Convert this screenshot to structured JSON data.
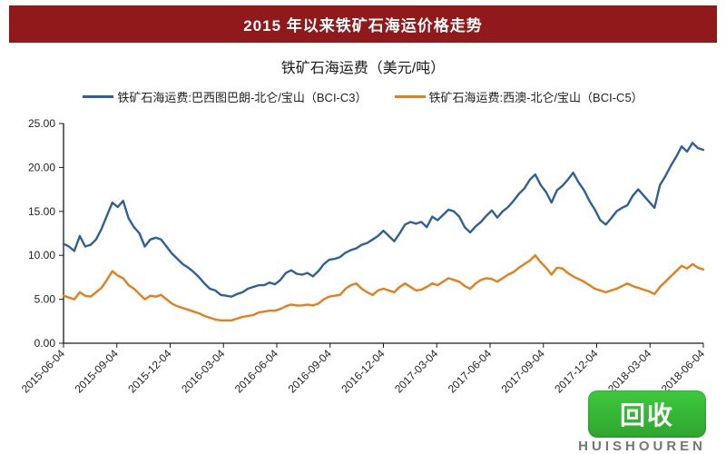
{
  "banner": {
    "title": "2015 年以来铁矿石海运价格走势"
  },
  "chart": {
    "subtitle": "铁矿石海运费（美元/吨）",
    "type": "line",
    "background_color": "#ffffff",
    "axis_color": "#1a1a1a",
    "tick_font_size": 12,
    "subtitle_font_size": 16,
    "legend_font_size": 13,
    "ylim": [
      0,
      25
    ],
    "yticks": [
      0,
      5,
      10,
      15,
      20,
      25
    ],
    "ytick_labels": [
      "0.00",
      "5.00",
      "10.00",
      "15.00",
      "20.00",
      "25.00"
    ],
    "x_labels": [
      "2015-06-04",
      "2015-09-04",
      "2015-12-04",
      "2016-03-04",
      "2016-06-04",
      "2016-09-04",
      "2016-12-04",
      "2017-03-04",
      "2017-06-04",
      "2017-09-04",
      "2017-12-04",
      "2018-03-04",
      "2018-06-04"
    ],
    "x_label_rotation": -45,
    "line_width": 2.4,
    "legend": {
      "items": [
        {
          "label": "铁矿石海运费:巴西图巴朗-北仑/宝山（BCI-C3）",
          "color": "#305f9e"
        },
        {
          "label": "铁矿石海运费:西澳-北仑/宝山（BCI-C5）",
          "color": "#e87d1a"
        }
      ]
    },
    "series": [
      {
        "name": "BCI-C3",
        "color": "#305f9e",
        "data": [
          11.3,
          11.0,
          10.5,
          12.2,
          11.0,
          11.2,
          11.8,
          13.0,
          14.5,
          16.0,
          15.5,
          16.2,
          14.2,
          13.2,
          12.5,
          11.0,
          11.8,
          12.0,
          11.8,
          11.0,
          10.2,
          9.6,
          9.0,
          8.6,
          8.1,
          7.5,
          6.8,
          6.2,
          6.0,
          5.5,
          5.4,
          5.3,
          5.6,
          5.8,
          6.2,
          6.4,
          6.6,
          6.6,
          6.9,
          6.7,
          7.2,
          8.0,
          8.3,
          7.9,
          7.8,
          8.0,
          7.6,
          8.2,
          9.0,
          9.5,
          9.6,
          9.8,
          10.3,
          10.6,
          10.8,
          11.2,
          11.4,
          11.8,
          12.2,
          12.8,
          12.2,
          11.6,
          12.5,
          13.5,
          13.8,
          13.6,
          13.8,
          13.2,
          14.4,
          14.0,
          14.6,
          15.2,
          15.0,
          14.4,
          13.2,
          12.6,
          13.3,
          13.8,
          14.5,
          15.1,
          14.3,
          15.0,
          15.5,
          16.2,
          17.0,
          17.6,
          18.6,
          19.2,
          18.0,
          17.2,
          16.0,
          17.4,
          17.9,
          18.6,
          19.4,
          18.3,
          17.4,
          16.2,
          15.2,
          14.0,
          13.5,
          14.2,
          15.0,
          15.4,
          15.7,
          16.8,
          17.5,
          16.8,
          16.1,
          15.4,
          18.0,
          19.0,
          20.2,
          21.2,
          22.4,
          21.8,
          22.8,
          22.2,
          22.0
        ]
      },
      {
        "name": "BCI-C5",
        "color": "#e87d1a",
        "data": [
          5.4,
          5.2,
          5.0,
          5.8,
          5.4,
          5.3,
          5.8,
          6.3,
          7.2,
          8.2,
          7.7,
          7.4,
          6.6,
          6.2,
          5.6,
          5.0,
          5.4,
          5.3,
          5.5,
          5.0,
          4.5,
          4.2,
          4.0,
          3.8,
          3.6,
          3.4,
          3.1,
          2.9,
          2.7,
          2.6,
          2.6,
          2.6,
          2.8,
          3.0,
          3.1,
          3.2,
          3.5,
          3.6,
          3.7,
          3.7,
          3.9,
          4.2,
          4.4,
          4.3,
          4.3,
          4.4,
          4.3,
          4.5,
          5.0,
          5.3,
          5.4,
          5.5,
          6.2,
          6.6,
          6.8,
          6.2,
          5.8,
          5.5,
          6.0,
          6.2,
          6.0,
          5.8,
          6.4,
          6.8,
          6.4,
          6.0,
          6.1,
          6.4,
          6.8,
          6.6,
          7.0,
          7.4,
          7.2,
          7.0,
          6.5,
          6.2,
          6.8,
          7.2,
          7.4,
          7.3,
          7.0,
          7.4,
          7.8,
          8.1,
          8.6,
          9.0,
          9.4,
          10.0,
          9.2,
          8.6,
          7.8,
          8.6,
          8.5,
          8.0,
          7.6,
          7.3,
          7.0,
          6.6,
          6.2,
          6.0,
          5.8,
          6.0,
          6.2,
          6.5,
          6.8,
          6.5,
          6.3,
          6.1,
          5.9,
          5.6,
          6.4,
          7.0,
          7.6,
          8.2,
          8.8,
          8.5,
          9.0,
          8.6,
          8.4
        ]
      }
    ]
  },
  "watermark": {
    "logo_text": "回收",
    "logo_bg": "#3ab23a",
    "sub_text": "HUISHOUREN",
    "sub_color": "#777777"
  }
}
